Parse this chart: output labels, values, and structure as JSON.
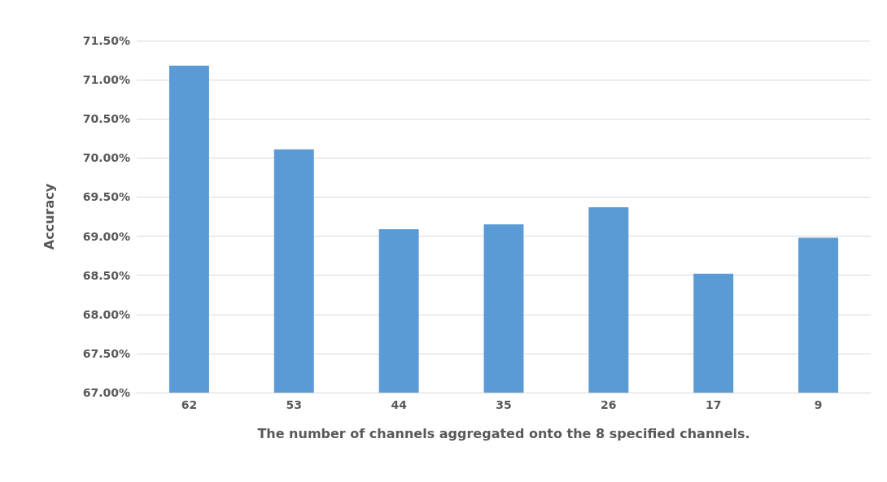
{
  "chart_data": {
    "type": "bar",
    "xlabel": "The number of channels aggregated onto the 8 specified channels.",
    "ylabel": "Accuracy",
    "categories": [
      "62",
      "53",
      "44",
      "35",
      "26",
      "17",
      "9"
    ],
    "values": [
      71.18,
      70.11,
      69.09,
      69.15,
      69.37,
      68.52,
      68.98
    ],
    "color": "#5b9bd5",
    "ylim": [
      67,
      71.5
    ],
    "yticks": [
      {
        "value": 67,
        "label": "67.00%"
      },
      {
        "value": 67.5,
        "label": "67.50%"
      },
      {
        "value": 68,
        "label": "68.00%"
      },
      {
        "value": 68.5,
        "label": "68.50%"
      },
      {
        "value": 69,
        "label": "69.00%"
      },
      {
        "value": 69.5,
        "label": "69.50%"
      },
      {
        "value": 70,
        "label": "70.00%"
      },
      {
        "value": 70.5,
        "label": "70.50%"
      },
      {
        "value": 71,
        "label": "71.00%"
      },
      {
        "value": 71.5,
        "label": "71.50%"
      }
    ],
    "grid": "y"
  }
}
